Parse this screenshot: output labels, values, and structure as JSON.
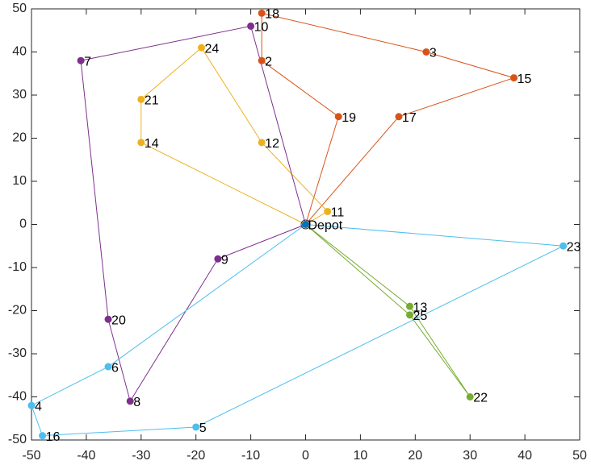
{
  "chart_data": {
    "type": "route",
    "xlim": [
      -50,
      50
    ],
    "ylim": [
      -50,
      50
    ],
    "xticks": [
      -50,
      -40,
      -30,
      -20,
      -10,
      0,
      10,
      20,
      30,
      40,
      50
    ],
    "yticks": [
      -50,
      -40,
      -30,
      -20,
      -10,
      0,
      10,
      20,
      30,
      40,
      50
    ],
    "depot": {
      "label": "Depot",
      "x": 0,
      "y": 0,
      "color": "#0072BD"
    },
    "routes": [
      {
        "color": "#D95319",
        "labels": [
          "19",
          "2",
          "18",
          "3",
          "15",
          "17"
        ],
        "x": [
          6,
          -8,
          -8,
          22,
          38,
          17
        ],
        "y": [
          25,
          38,
          49,
          40,
          34,
          25
        ]
      },
      {
        "color": "#EDB120",
        "labels": [
          "11",
          "12",
          "24",
          "21",
          "14"
        ],
        "x": [
          4,
          -8,
          -19,
          -30,
          -30
        ],
        "y": [
          3,
          19,
          41,
          29,
          19
        ]
      },
      {
        "color": "#7E2F8E",
        "labels": [
          "10",
          "7",
          "20",
          "8",
          "9"
        ],
        "x": [
          -10,
          -41,
          -36,
          -32,
          -16
        ],
        "y": [
          46,
          38,
          -22,
          -41,
          -8
        ]
      },
      {
        "color": "#4DBEEE",
        "labels": [
          "23",
          "5",
          "16",
          "4",
          "6"
        ],
        "x": [
          47,
          -20,
          -48,
          -50,
          -36
        ],
        "y": [
          -5,
          -47,
          -49,
          -42,
          -33
        ]
      },
      {
        "color": "#77AC30",
        "labels": [
          "13",
          "22",
          "25"
        ],
        "x": [
          19,
          30,
          19
        ],
        "y": [
          -19,
          -40,
          -21
        ]
      }
    ]
  }
}
